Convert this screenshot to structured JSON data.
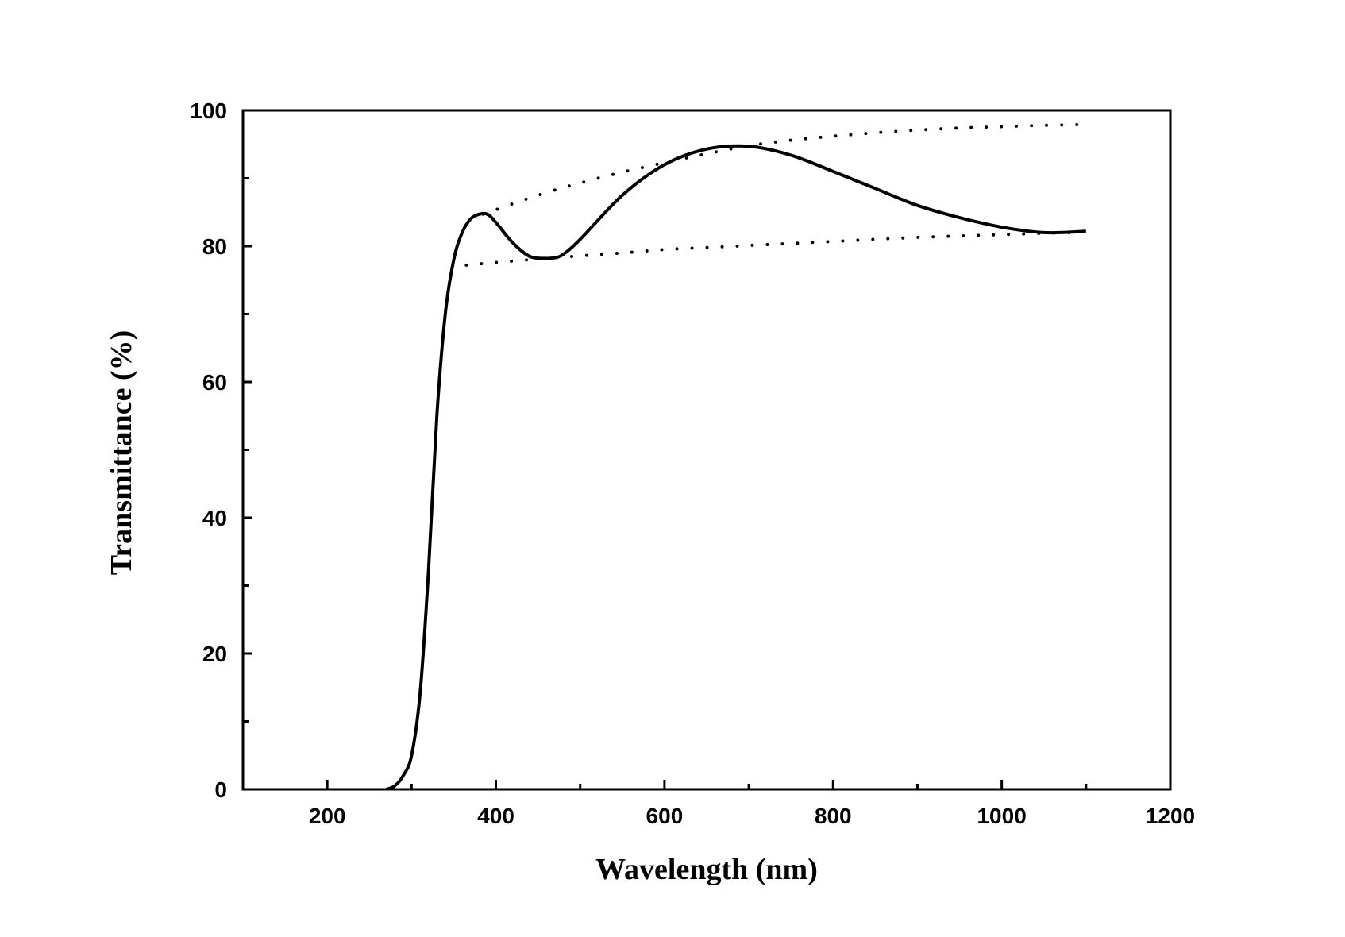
{
  "chart_data": {
    "type": "line",
    "xlabel": "Wavelength (nm)",
    "ylabel": "Transmittance (%)",
    "xlim": [
      100,
      1200
    ],
    "ylim": [
      0,
      100
    ],
    "x_ticks": [
      200,
      400,
      600,
      800,
      1000,
      1200
    ],
    "y_ticks": [
      0,
      20,
      40,
      60,
      80,
      100
    ],
    "x_minor_ticks": [
      300,
      500,
      700,
      900,
      1100
    ],
    "y_minor_ticks": [
      10,
      30,
      50,
      70,
      90
    ],
    "grid": false,
    "series": [
      {
        "style": "solid",
        "x": [
          270,
          280,
          290,
          300,
          310,
          320,
          330,
          340,
          350,
          360,
          370,
          380,
          390,
          400,
          420,
          440,
          460,
          470,
          480,
          500,
          550,
          600,
          650,
          700,
          750,
          800,
          850,
          900,
          950,
          1000,
          1050,
          1100
        ],
        "y": [
          0,
          0.5,
          2,
          5,
          14,
          32,
          55,
          70,
          78,
          82,
          84,
          84.7,
          84.7,
          83.5,
          80.5,
          78.5,
          78.2,
          78.3,
          78.8,
          81,
          87.5,
          92,
          94.3,
          94.7,
          93.4,
          91,
          88.5,
          86,
          84.2,
          82.8,
          82,
          82.2
        ]
      },
      {
        "style": "dotted",
        "x": [
          385,
          450,
          500,
          550,
          600,
          650,
          700,
          750,
          800,
          850,
          900,
          950,
          1000,
          1050,
          1090
        ],
        "y": [
          84.7,
          87.5,
          89.3,
          90.9,
          92.3,
          93.6,
          94.8,
          95.6,
          96.2,
          96.7,
          97.1,
          97.4,
          97.6,
          97.8,
          97.9
        ]
      },
      {
        "style": "dotted",
        "x": [
          365,
          400,
          470,
          550,
          600,
          650,
          700,
          750,
          800,
          850,
          900,
          950,
          1000,
          1050,
          1090
        ],
        "y": [
          77.2,
          77.6,
          78.3,
          79,
          79.5,
          79.8,
          80.1,
          80.4,
          80.7,
          81,
          81.3,
          81.5,
          81.7,
          81.9,
          82
        ]
      }
    ]
  }
}
